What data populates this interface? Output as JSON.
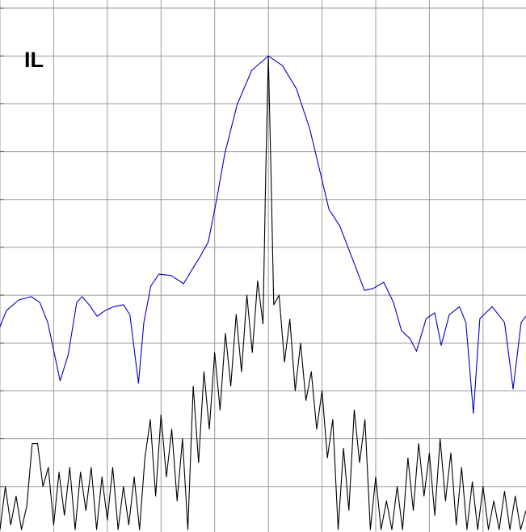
{
  "chart_data": {
    "type": "line",
    "label": "IL",
    "xlim": [
      -5,
      4.8
    ],
    "ylim": [
      -9.95,
      1.17
    ],
    "xticks": [
      -5,
      -4,
      -3,
      -2,
      -1,
      0,
      1,
      2,
      3,
      4
    ],
    "yticks": [
      1,
      0,
      -1,
      -2,
      -3,
      -4,
      -5,
      -6,
      -7,
      -8,
      -9
    ],
    "grid": true,
    "series": [
      {
        "color": "#0000cc",
        "x": [
          -5.0,
          -4.88,
          -4.65,
          -4.42,
          -4.26,
          -4.11,
          -3.88,
          -3.73,
          -3.57,
          -3.47,
          -3.34,
          -3.19,
          -3.04,
          -2.88,
          -2.7,
          -2.58,
          -2.42,
          -2.32,
          -2.19,
          -2.04,
          -1.81,
          -1.58,
          -1.43,
          -1.27,
          -1.12,
          -0.97,
          -0.81,
          -0.58,
          -0.31,
          0,
          0.26,
          0.52,
          0.77,
          0.95,
          1.13,
          1.33,
          1.56,
          1.79,
          1.95,
          2.15,
          2.33,
          2.48,
          2.64,
          2.76,
          2.94,
          3.1,
          3.22,
          3.37,
          3.56,
          3.68,
          3.82,
          3.94,
          4.17,
          4.4,
          4.56,
          4.71,
          4.8
        ],
        "values": [
          -5.66,
          -5.32,
          -5.1,
          -5.03,
          -5.15,
          -5.57,
          -6.79,
          -6.25,
          -5.15,
          -5.03,
          -5.2,
          -5.44,
          -5.32,
          -5.24,
          -5.2,
          -5.41,
          -6.84,
          -5.57,
          -4.81,
          -4.56,
          -4.59,
          -4.76,
          -4.48,
          -4.19,
          -3.89,
          -3.04,
          -2.03,
          -1.01,
          -0.3,
          0,
          -0.2,
          -0.68,
          -1.52,
          -2.36,
          -3.21,
          -3.55,
          -4.22,
          -4.9,
          -4.86,
          -4.73,
          -5.15,
          -5.74,
          -5.91,
          -6.17,
          -5.49,
          -5.37,
          -6.05,
          -5.41,
          -5.24,
          -5.57,
          -7.47,
          -5.49,
          -5.24,
          -5.57,
          -6.96,
          -5.57,
          -5.44
        ]
      },
      {
        "color": "#000000",
        "x": [
          -5.0,
          -4.9,
          -4.8,
          -4.7,
          -4.6,
          -4.5,
          -4.4,
          -4.3,
          -4.2,
          -4.1,
          -4.0,
          -3.9,
          -3.8,
          -3.7,
          -3.6,
          -3.5,
          -3.4,
          -3.3,
          -3.2,
          -3.1,
          -3.0,
          -2.9,
          -2.8,
          -2.7,
          -2.6,
          -2.5,
          -2.4,
          -2.3,
          -2.2,
          -2.1,
          -2.0,
          -1.9,
          -1.8,
          -1.7,
          -1.6,
          -1.5,
          -1.4,
          -1.3,
          -1.2,
          -1.1,
          -1.0,
          -0.9,
          -0.8,
          -0.7,
          -0.6,
          -0.5,
          -0.4,
          -0.3,
          -0.2,
          -0.1,
          -0.05,
          0,
          0.05,
          0.1,
          0.2,
          0.3,
          0.4,
          0.5,
          0.6,
          0.7,
          0.8,
          0.9,
          1.0,
          1.1,
          1.2,
          1.3,
          1.4,
          1.5,
          1.6,
          1.7,
          1.8,
          1.9,
          2.0,
          2.1,
          2.2,
          2.3,
          2.4,
          2.5,
          2.6,
          2.7,
          2.8,
          2.9,
          3.0,
          3.1,
          3.2,
          3.3,
          3.4,
          3.5,
          3.6,
          3.7,
          3.8,
          3.9,
          4.0,
          4.1,
          4.2,
          4.3,
          4.4,
          4.5,
          4.6,
          4.7,
          4.8
        ],
        "values": [
          -9.9,
          -9.0,
          -9.8,
          -9.2,
          -9.9,
          -9.4,
          -8.1,
          -8.1,
          -9.0,
          -8.6,
          -9.8,
          -8.7,
          -9.6,
          -8.6,
          -9.9,
          -8.7,
          -9.5,
          -8.6,
          -9.9,
          -8.8,
          -9.7,
          -8.6,
          -9.9,
          -9.0,
          -9.8,
          -8.8,
          -9.9,
          -8.4,
          -7.6,
          -9.2,
          -7.5,
          -8.8,
          -7.8,
          -9.3,
          -8.0,
          -9.9,
          -6.9,
          -8.5,
          -6.6,
          -7.8,
          -6.2,
          -7.4,
          -5.8,
          -6.9,
          -5.4,
          -6.6,
          -5.0,
          -6.2,
          -4.7,
          -5.6,
          -2.5,
          0,
          -2.5,
          -5.2,
          -5.0,
          -6.4,
          -5.5,
          -7.0,
          -6.0,
          -7.2,
          -6.6,
          -7.8,
          -7.0,
          -8.4,
          -7.6,
          -9.9,
          -8.2,
          -9.5,
          -7.4,
          -8.5,
          -7.6,
          -9.9,
          -8.8,
          -9.9,
          -9.3,
          -9.9,
          -9.0,
          -9.9,
          -8.4,
          -9.5,
          -8.1,
          -9.2,
          -8.3,
          -9.6,
          -8.0,
          -9.3,
          -8.3,
          -9.8,
          -8.6,
          -9.9,
          -8.9,
          -9.9,
          -9.0,
          -9.9,
          -9.3,
          -9.9,
          -9.1,
          -9.9,
          -9.2,
          -9.9,
          -9.5
        ]
      }
    ]
  }
}
